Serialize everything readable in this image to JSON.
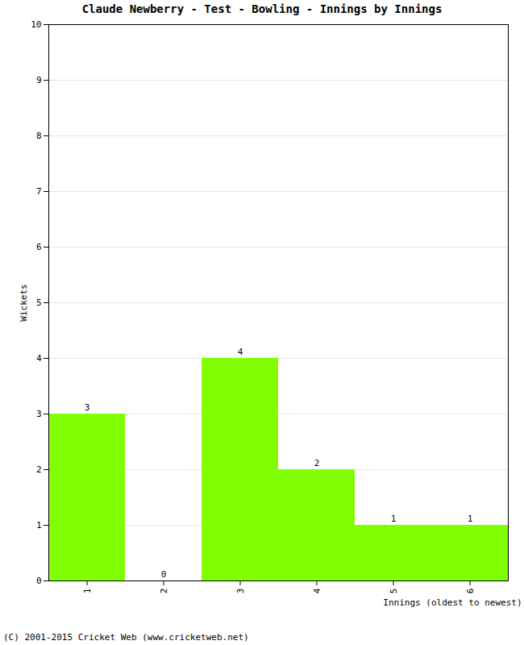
{
  "chart_data": {
    "type": "bar",
    "title": "Claude Newberry - Test - Bowling - Innings by Innings",
    "caption": "(C) 2001-2015 Cricket Web (www.cricketweb.net)",
    "x_label": "Innings (oldest to newest)",
    "y_label": "Wickets",
    "categories": [
      "1",
      "2",
      "3",
      "4",
      "5",
      "6"
    ],
    "values": [
      3,
      0,
      4,
      2,
      1,
      1
    ],
    "color": "#7fff00",
    "ylim": [
      0,
      10
    ],
    "yticks": [
      0,
      1,
      2,
      3,
      4,
      5,
      6,
      7,
      8,
      9,
      10
    ],
    "grid": true,
    "data_labels": true
  }
}
